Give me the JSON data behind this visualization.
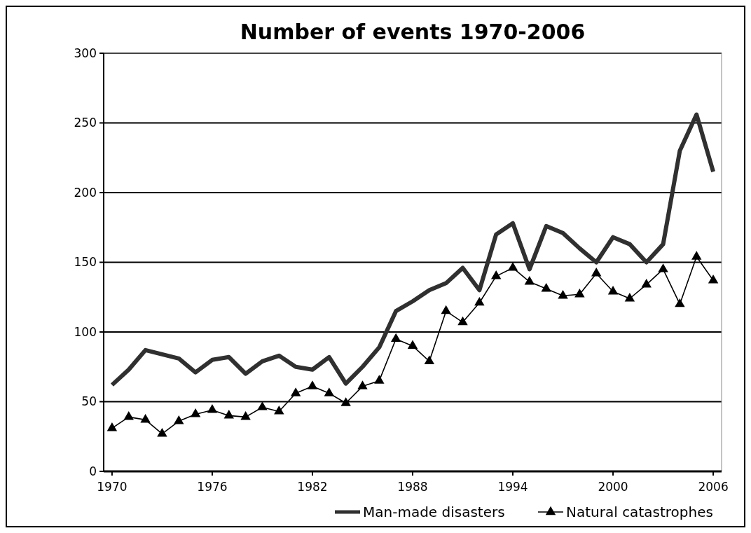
{
  "chart_data": {
    "type": "line",
    "title": "Number of events 1970-2006",
    "x": [
      1970,
      1971,
      1972,
      1973,
      1974,
      1975,
      1976,
      1977,
      1978,
      1979,
      1980,
      1981,
      1982,
      1983,
      1984,
      1985,
      1986,
      1987,
      1988,
      1989,
      1990,
      1991,
      1992,
      1993,
      1994,
      1995,
      1996,
      1997,
      1998,
      1999,
      2000,
      2001,
      2002,
      2003,
      2004,
      2005,
      2006
    ],
    "series": [
      {
        "name": "Man-made disasters",
        "color": "#303030",
        "marker": "none",
        "values": [
          62,
          73,
          87,
          84,
          81,
          71,
          80,
          82,
          70,
          79,
          83,
          75,
          73,
          82,
          63,
          75,
          89,
          115,
          122,
          130,
          135,
          146,
          130,
          170,
          178,
          145,
          176,
          171,
          160,
          150,
          168,
          163,
          150,
          163,
          230,
          256,
          215
        ]
      },
      {
        "name": "Natural catastrophes",
        "color": "#000000",
        "marker": "triangle",
        "values": [
          31,
          39,
          37,
          27,
          36,
          41,
          44,
          40,
          39,
          46,
          43,
          56,
          61,
          56,
          49,
          61,
          65,
          95,
          90,
          79,
          115,
          107,
          121,
          140,
          146,
          136,
          131,
          126,
          127,
          142,
          129,
          124,
          134,
          145,
          120,
          154,
          137
        ]
      }
    ],
    "xlim": [
      1969.5,
      2006.5
    ],
    "xticks": [
      1970,
      1976,
      1982,
      1988,
      1994,
      2000,
      2006
    ],
    "ylim": [
      0,
      300
    ],
    "yticks": [
      0,
      50,
      100,
      150,
      200,
      250,
      300
    ],
    "grid": "y",
    "legend": "bottom"
  }
}
